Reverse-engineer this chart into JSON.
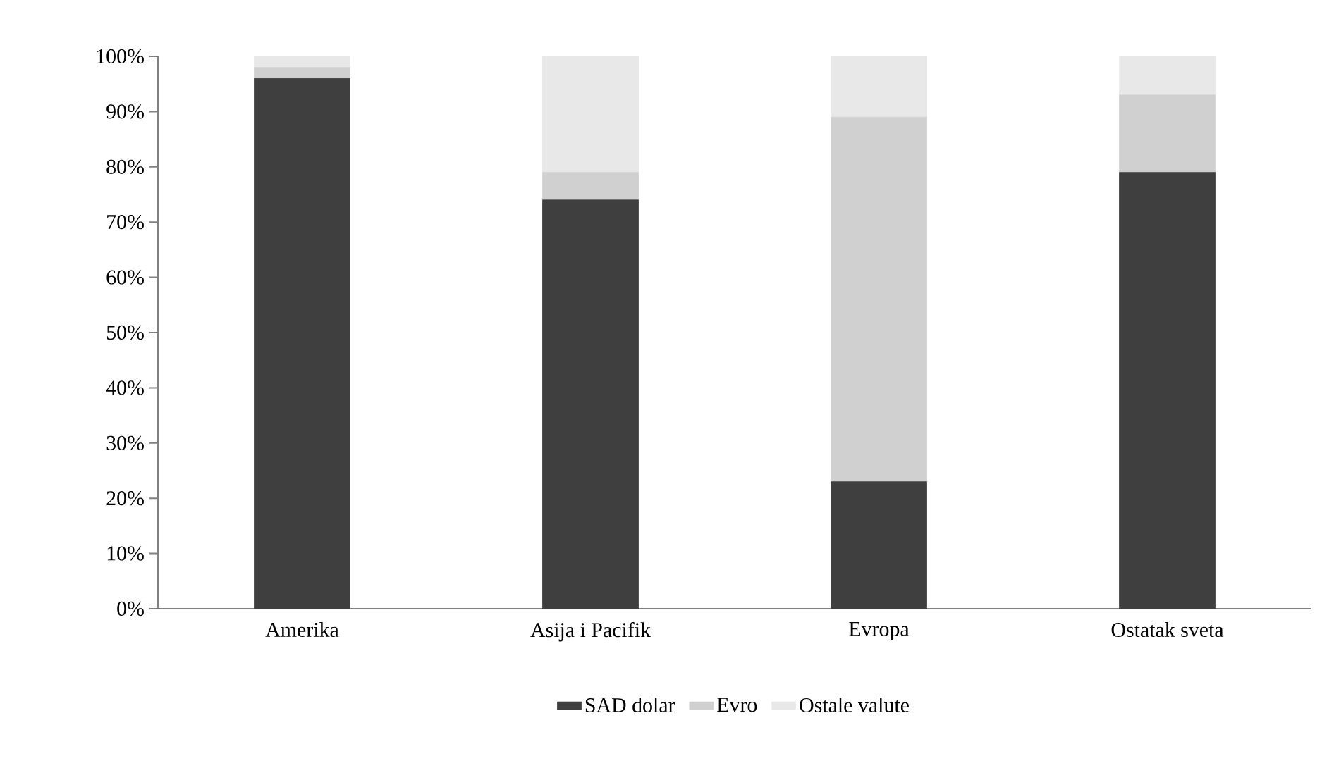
{
  "chart_data": {
    "type": "bar",
    "stacked": true,
    "categories": [
      "Amerika",
      "Asija i Pacifik",
      "Evropa",
      "Ostatak sveta"
    ],
    "series": [
      {
        "name": "SAD dolar",
        "color": "#3f3f3f",
        "values": [
          96,
          74,
          23,
          79
        ]
      },
      {
        "name": "Evro",
        "color": "#d0d0d0",
        "values": [
          2,
          5,
          66,
          14
        ]
      },
      {
        "name": "Ostale valute",
        "color": "#e8e8e8",
        "values": [
          2,
          21,
          11,
          7
        ]
      }
    ],
    "ylim": [
      0,
      100
    ],
    "yticks": [
      {
        "value": 0,
        "label": "0%"
      },
      {
        "value": 10,
        "label": "10%"
      },
      {
        "value": 20,
        "label": "20%"
      },
      {
        "value": 30,
        "label": "30%"
      },
      {
        "value": 40,
        "label": "40%"
      },
      {
        "value": 50,
        "label": "50%"
      },
      {
        "value": 60,
        "label": "60%"
      },
      {
        "value": 70,
        "label": "70%"
      },
      {
        "value": 80,
        "label": "80%"
      },
      {
        "value": 90,
        "label": "90%"
      },
      {
        "value": 100,
        "label": "100%"
      }
    ],
    "grid": false,
    "legend": "bottom"
  }
}
